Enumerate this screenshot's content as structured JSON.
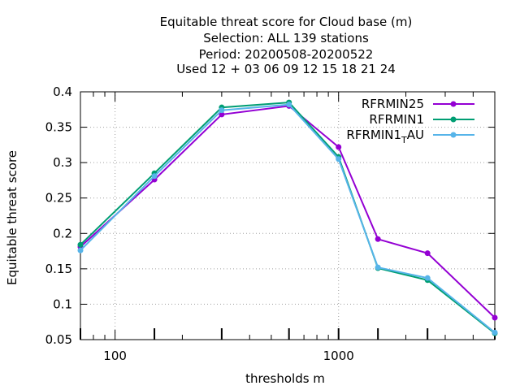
{
  "chart_data": {
    "type": "line",
    "title_lines": [
      "Equitable threat score  for Cloud base (m)",
      "Selection: ALL    139 stations",
      "Period: 20200508-20200522",
      "Used  12 + 03 06 09 12 15 18 21 24"
    ],
    "xlabel": "thresholds m",
    "ylabel": "Equitable threat score",
    "xscale": "log",
    "xlim": [
      70,
      5000
    ],
    "ylim": [
      0.05,
      0.4
    ],
    "xticks": [
      {
        "value": 100,
        "label": "100"
      },
      {
        "value": 1000,
        "label": "1000"
      }
    ],
    "yticks": [
      {
        "value": 0.05,
        "label": "0.05"
      },
      {
        "value": 0.1,
        "label": "0.1"
      },
      {
        "value": 0.15,
        "label": "0.15"
      },
      {
        "value": 0.2,
        "label": "0.2"
      },
      {
        "value": 0.25,
        "label": "0.25"
      },
      {
        "value": 0.3,
        "label": "0.3"
      },
      {
        "value": 0.35,
        "label": "0.35"
      },
      {
        "value": 0.4,
        "label": "0.4"
      }
    ],
    "grid": true,
    "legend_position": "top-right",
    "x": [
      70,
      150,
      300,
      600,
      1000,
      1500,
      2500,
      5000
    ],
    "series": [
      {
        "name": "RFRMIN25",
        "legend_main": "RFRMIN25",
        "legend_sub": "",
        "legend_after": "",
        "color": "#9400d3",
        "values": [
          0.181,
          0.276,
          0.368,
          0.38,
          0.322,
          0.192,
          0.172,
          0.081
        ]
      },
      {
        "name": "RFRMIN1",
        "legend_main": "RFRMIN1",
        "legend_sub": "",
        "legend_after": "",
        "color": "#009e73",
        "values": [
          0.184,
          0.285,
          0.378,
          0.385,
          0.308,
          0.151,
          0.134,
          0.059
        ]
      },
      {
        "name": "RFRMIN1_TAU",
        "legend_main": "RFRMIN1",
        "legend_sub": "T",
        "legend_after": "AU",
        "color": "#56b4e9",
        "values": [
          0.176,
          0.281,
          0.374,
          0.382,
          0.305,
          0.152,
          0.137,
          0.06
        ]
      }
    ]
  }
}
